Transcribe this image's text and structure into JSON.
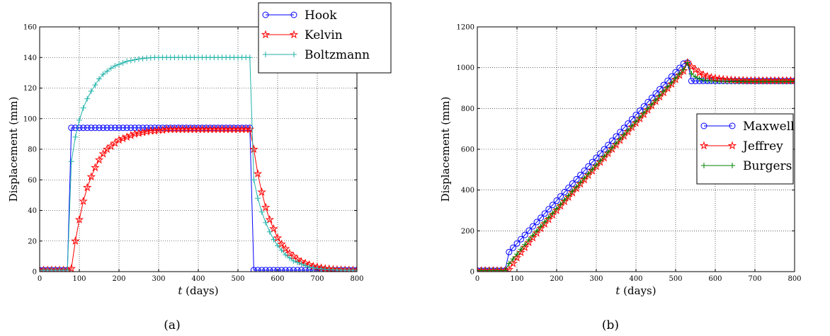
{
  "chart_data": [
    {
      "type": "line",
      "caption": "(a)",
      "xlabel_italic": "t",
      "xlabel_rest": " (days)",
      "ylabel": "Displacement (mm)",
      "xlim": [
        0,
        800
      ],
      "ylim": [
        0,
        160
      ],
      "xticks": [
        0,
        100,
        200,
        300,
        400,
        500,
        600,
        700,
        800
      ],
      "yticks": [
        0,
        20,
        40,
        60,
        80,
        100,
        120,
        140,
        160
      ],
      "grid": true,
      "legend_position": "top-right",
      "series": [
        {
          "name": "Hook",
          "color": "#0000ff",
          "marker": "circle",
          "x": [
            0,
            10,
            20,
            30,
            40,
            50,
            60,
            70,
            80,
            90,
            100,
            110,
            120,
            130,
            140,
            150,
            160,
            170,
            180,
            190,
            200,
            210,
            220,
            230,
            240,
            250,
            260,
            270,
            280,
            290,
            300,
            310,
            320,
            330,
            340,
            350,
            360,
            370,
            380,
            390,
            400,
            410,
            420,
            430,
            440,
            450,
            460,
            470,
            480,
            490,
            500,
            510,
            520,
            530,
            540,
            550,
            560,
            570,
            580,
            590,
            600,
            610,
            620,
            630,
            640,
            650,
            660,
            670,
            680,
            690,
            700,
            710,
            720,
            730,
            740,
            750,
            760,
            770,
            780,
            790,
            800
          ],
          "y": [
            1,
            1,
            1,
            1,
            1,
            1,
            1,
            1,
            94,
            94,
            94,
            94,
            94,
            94,
            94,
            94,
            94,
            94,
            94,
            94,
            94,
            94,
            94,
            94,
            94,
            94,
            94,
            94,
            94,
            94,
            94,
            94,
            94,
            94,
            94,
            94,
            94,
            94,
            94,
            94,
            94,
            94,
            94,
            94,
            94,
            94,
            94,
            94,
            94,
            94,
            94,
            94,
            94,
            94,
            1,
            1,
            1,
            1,
            1,
            1,
            1,
            1,
            1,
            1,
            1,
            1,
            1,
            1,
            1,
            1,
            1,
            1,
            1,
            1,
            1,
            1,
            1,
            1,
            1,
            1,
            1
          ]
        },
        {
          "name": "Kelvin",
          "color": "#ff0000",
          "marker": "star",
          "x": [
            0,
            10,
            20,
            30,
            40,
            50,
            60,
            70,
            80,
            90,
            100,
            110,
            120,
            130,
            140,
            150,
            160,
            170,
            180,
            190,
            200,
            210,
            220,
            230,
            240,
            250,
            260,
            270,
            280,
            290,
            300,
            310,
            320,
            330,
            340,
            350,
            360,
            370,
            380,
            390,
            400,
            410,
            420,
            430,
            440,
            450,
            460,
            470,
            480,
            490,
            500,
            510,
            520,
            530,
            540,
            550,
            560,
            570,
            580,
            590,
            600,
            610,
            620,
            630,
            640,
            650,
            660,
            670,
            680,
            690,
            700,
            710,
            720,
            730,
            740,
            750,
            760,
            770,
            780,
            790,
            800
          ],
          "y": [
            1,
            1,
            1,
            1,
            1,
            1,
            1,
            1,
            2,
            20,
            34,
            46,
            55,
            62,
            68,
            73,
            77,
            80,
            82,
            84,
            86,
            87,
            88,
            89,
            90,
            90.5,
            91,
            91.5,
            92,
            92,
            92.5,
            92.5,
            93,
            93,
            93,
            93,
            93,
            93,
            93,
            93,
            93,
            93,
            93,
            93,
            93,
            93,
            93,
            93,
            93,
            93,
            93,
            93,
            93,
            93,
            80,
            64,
            52,
            42,
            34,
            28,
            22,
            18,
            15,
            12,
            10,
            8,
            6.5,
            5.5,
            4.5,
            3.5,
            3,
            2.5,
            2,
            1.8,
            1.5,
            1.3,
            1.2,
            1.1,
            1,
            1,
            1
          ]
        },
        {
          "name": "Boltzmann",
          "color": "#20b2aa",
          "marker": "plus",
          "x": [
            0,
            10,
            20,
            30,
            40,
            50,
            60,
            70,
            80,
            90,
            100,
            110,
            120,
            130,
            140,
            150,
            160,
            170,
            180,
            190,
            200,
            210,
            220,
            230,
            240,
            250,
            260,
            270,
            280,
            290,
            300,
            310,
            320,
            330,
            340,
            350,
            360,
            370,
            380,
            390,
            400,
            410,
            420,
            430,
            440,
            450,
            460,
            470,
            480,
            490,
            500,
            510,
            520,
            530,
            540,
            550,
            560,
            570,
            580,
            590,
            600,
            610,
            620,
            630,
            640,
            650,
            660,
            670,
            680,
            690,
            700,
            710,
            720,
            730,
            740,
            750,
            760,
            770,
            780,
            790,
            800
          ],
          "y": [
            1,
            1,
            1,
            1,
            1,
            1,
            1,
            1,
            72,
            88,
            99,
            107,
            113,
            118,
            122,
            126,
            129,
            131,
            133,
            134.5,
            135.5,
            136.5,
            137.5,
            138,
            138.5,
            139,
            139.3,
            139.6,
            139.8,
            140,
            140,
            140,
            140,
            140,
            140,
            140,
            140,
            140,
            140,
            140,
            140,
            140,
            140,
            140,
            140,
            140,
            140,
            140,
            140,
            140,
            140,
            140,
            140,
            140,
            60,
            48,
            39,
            32,
            26,
            21,
            17,
            14,
            11,
            9,
            7,
            6,
            5,
            4,
            3,
            2.5,
            2,
            1.8,
            1.5,
            1.3,
            1.2,
            1.1,
            1,
            1,
            1,
            1,
            1
          ]
        }
      ]
    },
    {
      "type": "line",
      "caption": "(b)",
      "xlabel_italic": "t",
      "xlabel_rest": " (days)",
      "ylabel": "Displacement (mm)",
      "xlim": [
        0,
        800
      ],
      "ylim": [
        0,
        1200
      ],
      "xticks": [
        0,
        100,
        200,
        300,
        400,
        500,
        600,
        700,
        800
      ],
      "yticks": [
        0,
        200,
        400,
        600,
        800,
        1000,
        1200
      ],
      "grid": true,
      "legend_position": "center-right",
      "series": [
        {
          "name": "Maxwell",
          "color": "#0000ff",
          "marker": "circle",
          "x": [
            0,
            10,
            20,
            30,
            40,
            50,
            60,
            70,
            80,
            90,
            100,
            110,
            120,
            130,
            140,
            150,
            160,
            170,
            180,
            190,
            200,
            210,
            220,
            230,
            240,
            250,
            260,
            270,
            280,
            290,
            300,
            310,
            320,
            330,
            340,
            350,
            360,
            370,
            380,
            390,
            400,
            410,
            420,
            430,
            440,
            450,
            460,
            470,
            480,
            490,
            500,
            510,
            520,
            530,
            540,
            550,
            560,
            570,
            580,
            590,
            600,
            610,
            620,
            630,
            640,
            650,
            660,
            670,
            680,
            690,
            700,
            710,
            720,
            730,
            740,
            750,
            760,
            770,
            780,
            790,
            800
          ],
          "y": [
            5,
            5,
            5,
            5,
            5,
            5,
            5,
            5,
            96,
            117,
            138,
            159,
            180,
            201,
            222,
            243,
            264,
            285,
            306,
            327,
            348,
            369,
            390,
            411,
            432,
            453,
            474,
            495,
            516,
            537,
            558,
            579,
            600,
            621,
            642,
            663,
            684,
            705,
            726,
            747,
            768,
            789,
            810,
            831,
            852,
            873,
            894,
            915,
            936,
            957,
            978,
            999,
            1020,
            1025,
            935,
            935,
            935,
            935,
            935,
            935,
            935,
            935,
            935,
            935,
            935,
            935,
            935,
            935,
            935,
            935,
            935,
            935,
            935,
            935,
            935,
            935,
            935,
            935,
            935,
            935,
            935
          ]
        },
        {
          "name": "Jeffrey",
          "color": "#ff0000",
          "marker": "star",
          "x": [
            0,
            10,
            20,
            30,
            40,
            50,
            60,
            70,
            80,
            90,
            100,
            110,
            120,
            130,
            140,
            150,
            160,
            170,
            180,
            190,
            200,
            210,
            220,
            230,
            240,
            250,
            260,
            270,
            280,
            290,
            300,
            310,
            320,
            330,
            340,
            350,
            360,
            370,
            380,
            390,
            400,
            410,
            420,
            430,
            440,
            450,
            460,
            470,
            480,
            490,
            500,
            510,
            520,
            530,
            540,
            550,
            560,
            570,
            580,
            590,
            600,
            610,
            620,
            630,
            640,
            650,
            660,
            670,
            680,
            690,
            700,
            710,
            720,
            730,
            740,
            750,
            760,
            770,
            780,
            790,
            800
          ],
          "y": [
            5,
            5,
            5,
            5,
            5,
            5,
            5,
            5,
            10,
            40,
            68,
            94,
            119,
            143,
            166,
            189,
            212,
            234,
            256,
            278,
            300,
            322,
            344,
            365,
            387,
            408,
            430,
            451,
            473,
            494,
            516,
            537,
            558,
            580,
            601,
            622,
            644,
            665,
            686,
            708,
            729,
            750,
            771,
            793,
            814,
            835,
            857,
            878,
            899,
            920,
            942,
            963,
            984,
            1025,
            1005,
            990,
            975,
            965,
            958,
            952,
            948,
            945,
            943,
            941,
            940,
            939,
            938,
            938,
            937,
            937,
            937,
            937,
            937,
            937,
            937,
            937,
            937,
            937,
            937,
            937,
            937
          ]
        },
        {
          "name": "Burgers",
          "color": "#008000",
          "marker": "plus",
          "x": [
            0,
            10,
            20,
            30,
            40,
            50,
            60,
            70,
            80,
            90,
            100,
            110,
            120,
            130,
            140,
            150,
            160,
            170,
            180,
            190,
            200,
            210,
            220,
            230,
            240,
            250,
            260,
            270,
            280,
            290,
            300,
            310,
            320,
            330,
            340,
            350,
            360,
            370,
            380,
            390,
            400,
            410,
            420,
            430,
            440,
            450,
            460,
            470,
            480,
            490,
            500,
            510,
            520,
            530,
            540,
            550,
            560,
            570,
            580,
            590,
            600,
            610,
            620,
            630,
            640,
            650,
            660,
            670,
            680,
            690,
            700,
            710,
            720,
            730,
            740,
            750,
            760,
            770,
            780,
            790,
            800
          ],
          "y": [
            5,
            5,
            5,
            5,
            5,
            5,
            5,
            5,
            40,
            62,
            86,
            110,
            133,
            156,
            178,
            200,
            222,
            244,
            266,
            287,
            309,
            330,
            352,
            373,
            395,
            416,
            438,
            459,
            480,
            502,
            523,
            544,
            566,
            587,
            608,
            630,
            651,
            672,
            694,
            715,
            736,
            757,
            779,
            800,
            821,
            842,
            864,
            885,
            906,
            927,
            949,
            970,
            991,
            1025,
            970,
            955,
            945,
            940,
            937,
            935,
            934,
            933,
            933,
            932,
            932,
            932,
            932,
            932,
            932,
            932,
            932,
            932,
            932,
            932,
            932,
            932,
            932,
            932,
            932,
            932,
            932
          ]
        }
      ]
    }
  ]
}
